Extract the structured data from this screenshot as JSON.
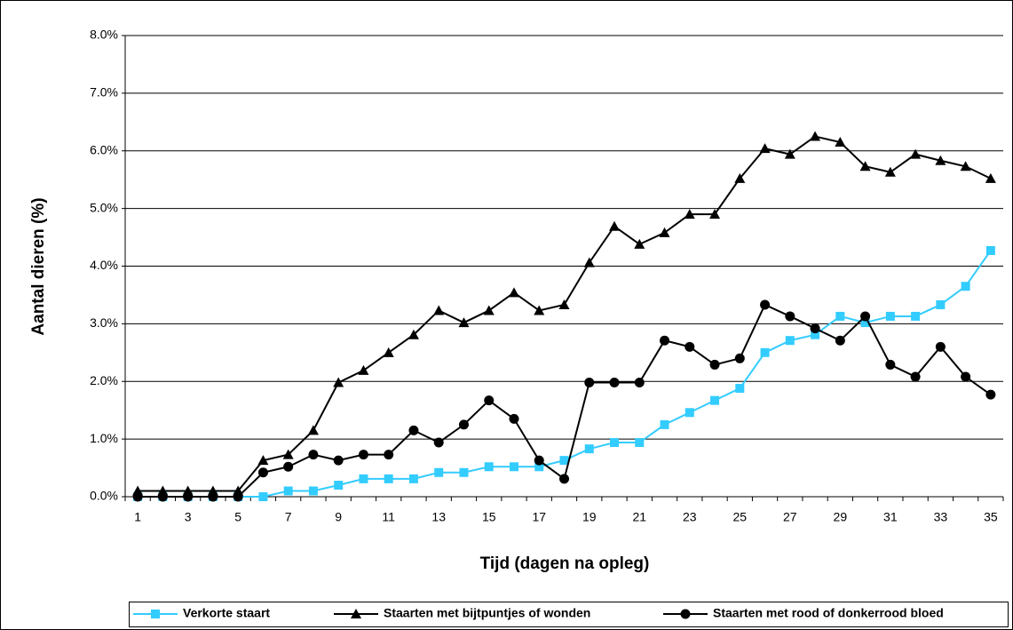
{
  "chart_data": {
    "type": "line",
    "y_label": "Aantal dieren (%)",
    "x_label": "Tijd (dagen na opleg)",
    "categories": [
      "1",
      null,
      "3",
      null,
      "5",
      null,
      "7",
      null,
      "9",
      null,
      "11",
      null,
      "13",
      null,
      "15",
      null,
      "17",
      null,
      "19",
      null,
      "21",
      null,
      "23",
      null,
      "25",
      null,
      "27",
      null,
      "29",
      null,
      "31",
      null,
      "33",
      null,
      "35"
    ],
    "ylim": [
      0,
      8
    ],
    "yticks": [
      {
        "value": 0,
        "label": "0.0%"
      },
      {
        "value": 1,
        "label": "1.0%"
      },
      {
        "value": 2,
        "label": "2.0%"
      },
      {
        "value": 3,
        "label": "3.0%"
      },
      {
        "value": 4,
        "label": "4.0%"
      },
      {
        "value": 5,
        "label": "5.0%"
      },
      {
        "value": 6,
        "label": "6.0%"
      },
      {
        "value": 7,
        "label": "7.0%"
      },
      {
        "value": 8,
        "label": "8.0%"
      }
    ],
    "grid": true,
    "legend": "bottom",
    "series": [
      {
        "name": "Verkorte staart",
        "color": "#33ccff",
        "marker": "square",
        "values": [
          0,
          0,
          0,
          0,
          0,
          0,
          0.1,
          0.1,
          0.2,
          0.31,
          0.31,
          0.31,
          0.42,
          0.42,
          0.52,
          0.52,
          0.52,
          0.63,
          0.83,
          0.94,
          0.94,
          1.25,
          1.46,
          1.67,
          1.88,
          2.5,
          2.71,
          2.81,
          3.13,
          3.02,
          3.13,
          3.13,
          3.33,
          3.65,
          4.27
        ]
      },
      {
        "name": "Staarten met bijtpuntjes of wonden",
        "color": "#000000",
        "marker": "triangle",
        "values": [
          0.1,
          0.1,
          0.1,
          0.1,
          0.1,
          0.63,
          0.73,
          1.15,
          1.98,
          2.19,
          2.5,
          2.81,
          3.23,
          3.02,
          3.23,
          3.54,
          3.23,
          3.33,
          4.06,
          4.69,
          4.38,
          4.58,
          4.9,
          4.9,
          5.52,
          6.04,
          5.94,
          6.25,
          6.15,
          5.73,
          5.63,
          5.94,
          5.83,
          5.73,
          5.52
        ]
      },
      {
        "name": "Staarten met rood of donkerrood bloed",
        "color": "#000000",
        "marker": "circle",
        "values": [
          0,
          0,
          0,
          0,
          0,
          0.42,
          0.52,
          0.73,
          0.63,
          0.73,
          0.73,
          1.15,
          0.94,
          1.25,
          1.67,
          1.35,
          0.63,
          0.31,
          1.98,
          1.98,
          1.98,
          2.71,
          2.6,
          2.29,
          2.4,
          3.33,
          3.13,
          2.92,
          2.71,
          3.13,
          2.29,
          2.08,
          2.6,
          2.08,
          1.77
        ]
      }
    ]
  }
}
